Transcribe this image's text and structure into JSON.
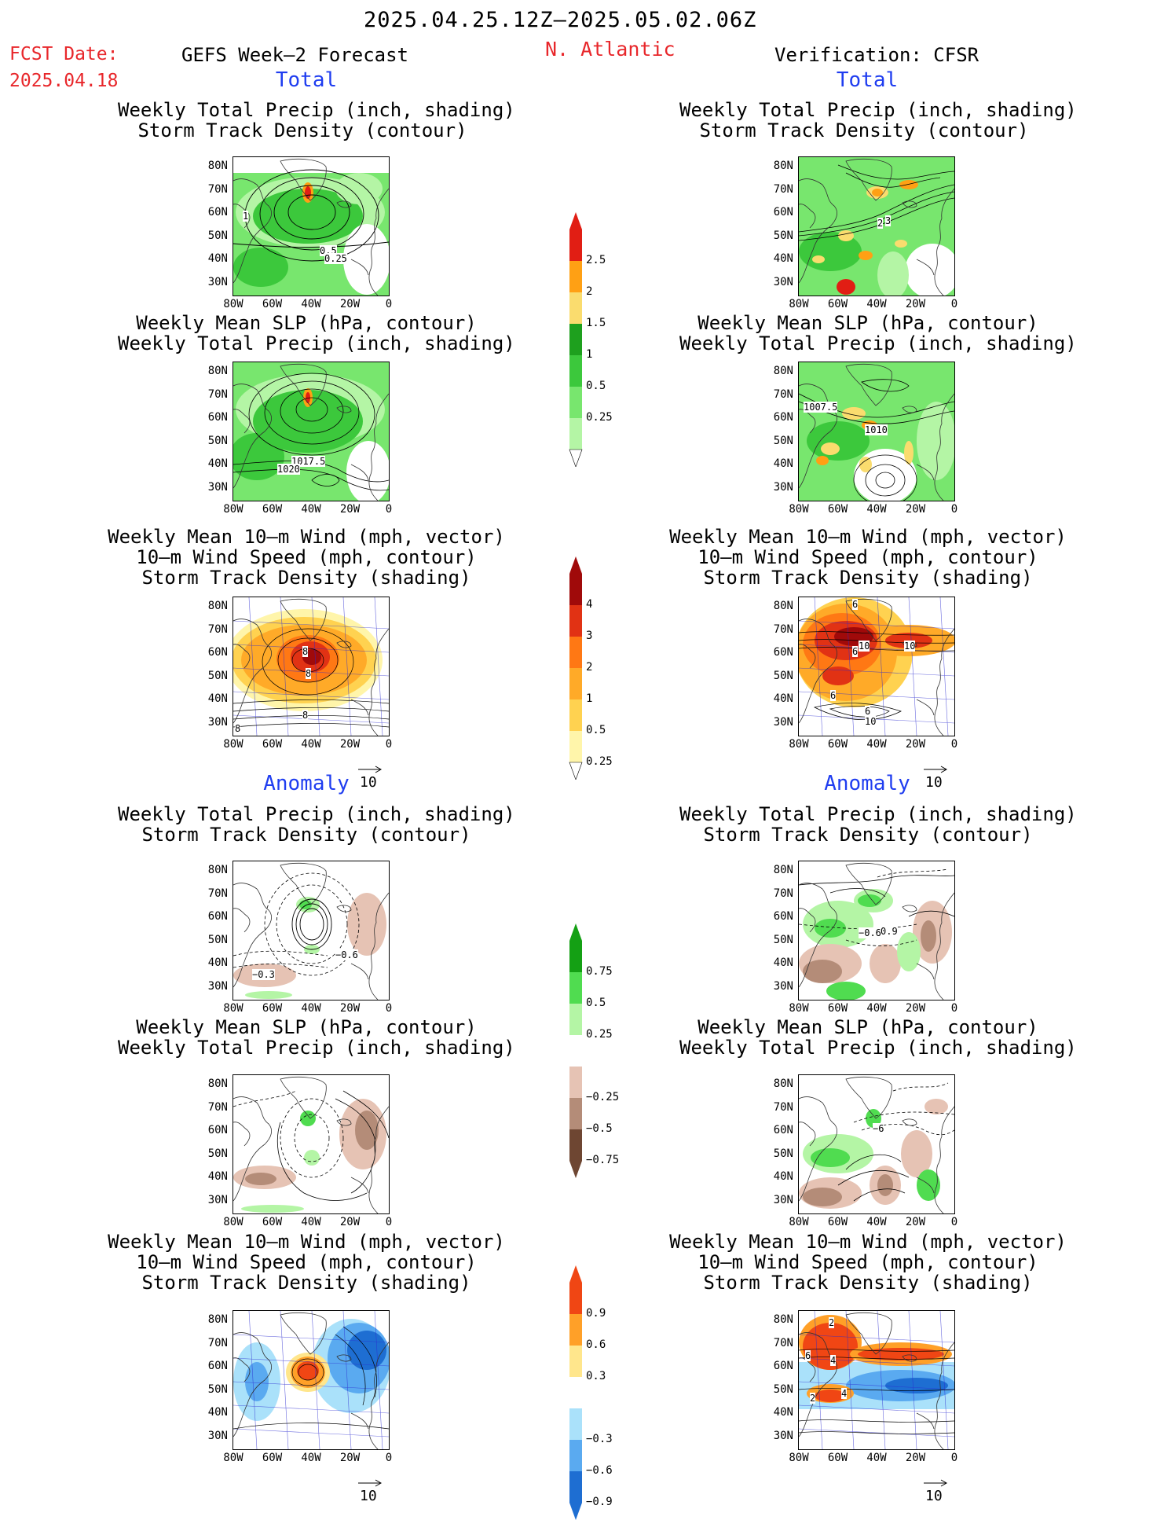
{
  "header": {
    "title": "2025.04.25.12Z–2025.05.02.06Z",
    "fcst_label": "FCST Date:",
    "fcst_date": "2025.04.18",
    "left_heading": "GEFS Week–2 Forecast",
    "region": "N. Atlantic",
    "right_heading": "Verification: CFSR"
  },
  "sections": {
    "total": "Total",
    "anomaly": "Anomaly"
  },
  "panel_titles": {
    "precip_track": "Weekly Total Precip (inch, shading)\nStorm Track Density (contour)",
    "slp_precip": "Weekly Mean SLP (hPa, contour)\nWeekly Total Precip (inch, shading)",
    "wind_track": "Weekly Mean 10–m Wind (mph, vector)\n10–m Wind Speed (mph, contour)\nStorm Track Density (shading)"
  },
  "axes": {
    "lat_ticks": [
      "80N",
      "70N",
      "60N",
      "50N",
      "40N",
      "30N"
    ],
    "lon_ticks": [
      "80W",
      "60W",
      "40W",
      "20W",
      "0"
    ]
  },
  "vector_ref": "10",
  "colorbars": {
    "precip_total": [
      "2.5",
      "2",
      "1.5",
      "1",
      "0.5",
      "0.25"
    ],
    "track_total": [
      "4",
      "3",
      "2",
      "1",
      "0.5",
      "0.25"
    ],
    "precip_anom": [
      "0.75",
      "0.5",
      "0.25",
      "−0.25",
      "−0.5",
      "−0.75"
    ],
    "track_anom": [
      "0.9",
      "0.6",
      "0.3",
      "−0.3",
      "−0.6",
      "−0.9"
    ]
  },
  "contour_labels": {
    "fcst_precip_total": [
      "1",
      "0.5",
      "0.25"
    ],
    "obs_precip_total": [
      "2",
      "3"
    ],
    "fcst_slp_total": [
      "1017.5",
      "1020"
    ],
    "obs_slp_total": [
      "1007.5",
      "1010"
    ],
    "fcst_wind_total": [
      "8",
      "8",
      "8",
      "8"
    ],
    "obs_wind_total": [
      "6",
      "10",
      "10",
      "6",
      "6",
      "6",
      "10"
    ],
    "fcst_precip_anom": [
      "−0.3",
      "−0.6"
    ],
    "obs_precip_anom": [
      "−0.6",
      "0.9"
    ],
    "obs_slp_anom": [
      "−6"
    ],
    "obs_wind_anom": [
      "2",
      "6",
      "4",
      "2",
      "4"
    ]
  },
  "colors": {
    "header_red": "#e8272b",
    "section_blue": "#1f3df0",
    "precip": [
      "#b4f5a5",
      "#78e66e",
      "#3cc83c",
      "#1ea01e",
      "#fadc6e",
      "#ffa014",
      "#e11e14"
    ],
    "track": [
      "#fff5aa",
      "#ffd250",
      "#ffaa28",
      "#ff7814",
      "#e13214",
      "#a00a0a"
    ],
    "anom_pos": [
      "#b4f5a5",
      "#50dc50",
      "#14a014"
    ],
    "anom_neg": [
      "#e6c3b4",
      "#b48c78",
      "#6e4632"
    ],
    "track_anom_pos": [
      "#ffe68c",
      "#ffa028",
      "#f04614"
    ],
    "track_anom_neg": [
      "#aae1fa",
      "#5aaaf0",
      "#1e6ed2"
    ]
  }
}
